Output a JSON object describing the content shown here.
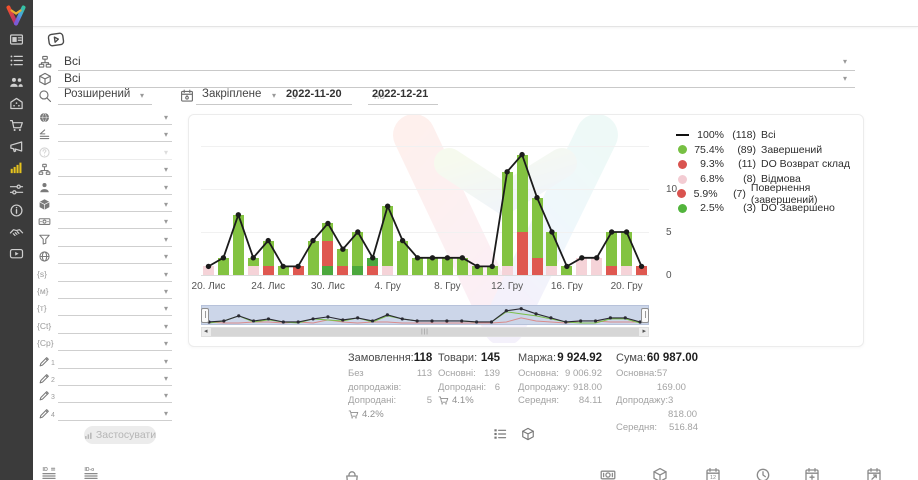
{
  "colors": {
    "bar_green": "#83c341",
    "bar_red": "#df5850",
    "bar_pink": "#f5d3d8",
    "bar_dgreen": "#4ca83d",
    "line_black": "#1b1b1b",
    "legend_green": "#77c043",
    "legend_red": "#d9534f",
    "legend_pink": "#f3ccd3",
    "legend_dgreen": "#52b43c",
    "sidebar_active": "#e6c31e",
    "nav_green": "#7cbf4a",
    "nav_red": "#d98b8b"
  },
  "sidebar": {
    "items": [
      {
        "icon": "dashboard-image"
      },
      {
        "icon": "order-list"
      },
      {
        "icon": "users"
      },
      {
        "icon": "warehouse"
      },
      {
        "icon": "cart"
      },
      {
        "icon": "megaphone"
      },
      {
        "icon": "analytics",
        "active": true
      },
      {
        "icon": "settings-sliders"
      },
      {
        "icon": "info"
      },
      {
        "icon": "partners"
      },
      {
        "icon": "video"
      }
    ]
  },
  "filters": {
    "top_rows": [
      {
        "icon": "hierarchy",
        "value": "Всі"
      },
      {
        "icon": "cube-outline",
        "value": "Всі"
      }
    ],
    "search_mode": "Розширений",
    "pinned_label": "Закріплене",
    "from_label": "з",
    "date_from": "2022-11-20",
    "to_label": "по",
    "date_to": "2022-12-21",
    "apply_label": "Застосувати",
    "rows": [
      {
        "icon": "globe-filled"
      },
      {
        "icon": "levels"
      },
      {
        "icon": "question-circle",
        "disabled": true
      },
      {
        "icon": "sitemap"
      },
      {
        "icon": "person"
      },
      {
        "icon": "cube-filled"
      },
      {
        "icon": "banknote"
      },
      {
        "icon": "funnel"
      },
      {
        "icon": "globe-wire"
      },
      {
        "icon": "token",
        "token": "{s}"
      },
      {
        "icon": "token",
        "token": "{м}"
      },
      {
        "icon": "token",
        "token": "{т}"
      },
      {
        "icon": "token",
        "token": "{Ct}"
      },
      {
        "icon": "token",
        "token": "{Cp}"
      },
      {
        "icon": "pencil",
        "num": "1"
      },
      {
        "icon": "pencil",
        "num": "2"
      },
      {
        "icon": "pencil",
        "num": "3"
      },
      {
        "icon": "pencil",
        "num": "4"
      }
    ]
  },
  "chart_data": {
    "type": "bar",
    "subtype": "stacked-bars-with-total-line",
    "ylim": [
      0,
      15
    ],
    "y_ticks": [
      0,
      5,
      10
    ],
    "grid": true,
    "legend_position": "right",
    "x_tick_labels": [
      {
        "i": 0,
        "label": "20. Лис"
      },
      {
        "i": 4,
        "label": "24. Лис"
      },
      {
        "i": 8,
        "label": "30. Лис"
      },
      {
        "i": 12,
        "label": "4. Гру"
      },
      {
        "i": 16,
        "label": "8. Гру"
      },
      {
        "i": 20,
        "label": "12. Гру"
      },
      {
        "i": 24,
        "label": "16. Гру"
      },
      {
        "i": 28,
        "label": "20. Гру"
      }
    ],
    "days": [
      {
        "d": "20.11",
        "t": 1,
        "seg": [
          [
            "pink",
            1
          ]
        ]
      },
      {
        "d": "21.11",
        "t": 2,
        "seg": [
          [
            "green",
            2
          ]
        ]
      },
      {
        "d": "22.11",
        "t": 7,
        "seg": [
          [
            "green",
            7
          ]
        ]
      },
      {
        "d": "23.11",
        "t": 2,
        "seg": [
          [
            "pink",
            1
          ],
          [
            "green",
            1
          ]
        ]
      },
      {
        "d": "24.11",
        "t": 4,
        "seg": [
          [
            "red",
            1
          ],
          [
            "green",
            3
          ]
        ]
      },
      {
        "d": "25.11",
        "t": 1,
        "seg": [
          [
            "green",
            1
          ]
        ]
      },
      {
        "d": "28.11",
        "t": 1,
        "seg": [
          [
            "red",
            1
          ]
        ]
      },
      {
        "d": "29.11",
        "t": 4,
        "seg": [
          [
            "green",
            4
          ]
        ]
      },
      {
        "d": "30.11",
        "t": 6,
        "seg": [
          [
            "dgreen",
            1
          ],
          [
            "red",
            3
          ],
          [
            "green",
            2
          ]
        ]
      },
      {
        "d": "01.12",
        "t": 3,
        "seg": [
          [
            "red",
            1
          ],
          [
            "green",
            2
          ]
        ]
      },
      {
        "d": "02.12",
        "t": 5,
        "seg": [
          [
            "dgreen",
            1
          ],
          [
            "green",
            4
          ]
        ]
      },
      {
        "d": "03.12",
        "t": 2,
        "seg": [
          [
            "red",
            1
          ],
          [
            "dgreen",
            1
          ]
        ]
      },
      {
        "d": "04.12",
        "t": 8,
        "seg": [
          [
            "pink",
            1
          ],
          [
            "green",
            7
          ]
        ]
      },
      {
        "d": "05.12",
        "t": 4,
        "seg": [
          [
            "green",
            4
          ]
        ]
      },
      {
        "d": "06.12",
        "t": 2,
        "seg": [
          [
            "green",
            2
          ]
        ]
      },
      {
        "d": "07.12",
        "t": 2,
        "seg": [
          [
            "green",
            2
          ]
        ]
      },
      {
        "d": "08.12",
        "t": 2,
        "seg": [
          [
            "green",
            2
          ]
        ]
      },
      {
        "d": "09.12",
        "t": 2,
        "seg": [
          [
            "green",
            2
          ]
        ]
      },
      {
        "d": "10.12",
        "t": 1,
        "seg": [
          [
            "green",
            1
          ]
        ]
      },
      {
        "d": "11.12",
        "t": 1,
        "seg": [
          [
            "green",
            1
          ]
        ]
      },
      {
        "d": "12.12",
        "t": 12,
        "seg": [
          [
            "pink",
            1
          ],
          [
            "green",
            11
          ]
        ]
      },
      {
        "d": "13.12",
        "t": 14,
        "seg": [
          [
            "red",
            5
          ],
          [
            "green",
            9
          ]
        ]
      },
      {
        "d": "14.12",
        "t": 9,
        "seg": [
          [
            "red",
            2
          ],
          [
            "green",
            7
          ]
        ]
      },
      {
        "d": "15.12",
        "t": 5,
        "seg": [
          [
            "pink",
            1
          ],
          [
            "green",
            4
          ]
        ]
      },
      {
        "d": "16.12",
        "t": 1,
        "seg": [
          [
            "green",
            1
          ]
        ]
      },
      {
        "d": "17.12",
        "t": 2,
        "seg": [
          [
            "pink",
            2
          ]
        ]
      },
      {
        "d": "18.12",
        "t": 2,
        "seg": [
          [
            "pink",
            2
          ]
        ]
      },
      {
        "d": "19.12",
        "t": 5,
        "seg": [
          [
            "red",
            1
          ],
          [
            "green",
            4
          ]
        ]
      },
      {
        "d": "20.12",
        "t": 5,
        "seg": [
          [
            "pink",
            1
          ],
          [
            "green",
            4
          ]
        ]
      },
      {
        "d": "21.12",
        "t": 1,
        "seg": [
          [
            "red",
            1
          ]
        ]
      }
    ]
  },
  "legend": {
    "entries": [
      {
        "swatch": "line",
        "color": "#111111",
        "pct": "100%",
        "count": "(118)",
        "label": "Всі"
      },
      {
        "swatch": "dot",
        "color": "#77c043",
        "pct": "75.4%",
        "count": "(89)",
        "label": "Завершений"
      },
      {
        "swatch": "dot",
        "color": "#d9534f",
        "pct": "9.3%",
        "count": "(11)",
        "label": "DO Возврат склад"
      },
      {
        "swatch": "dot",
        "color": "#f3ccd3",
        "pct": "6.8%",
        "count": "(8)",
        "label": "Відмова"
      },
      {
        "swatch": "dot",
        "color": "#d9534f",
        "pct": "5.9%",
        "count": "(7)",
        "label": "Повернення (завершений)"
      },
      {
        "swatch": "dot",
        "color": "#52b43c",
        "pct": "2.5%",
        "count": "(3)",
        "label": "DO Завершено"
      }
    ]
  },
  "stats": {
    "groups": [
      {
        "title": "Замовлення:",
        "value": "118",
        "rows": [
          [
            "Без допродажів:",
            "113"
          ],
          [
            "Допродані:",
            "5"
          ]
        ],
        "foot_pct": "4.2%",
        "cart": true
      },
      {
        "title": "Товари:",
        "value": "145",
        "rows": [
          [
            "Основні:",
            "139"
          ],
          [
            "Допродані:",
            "6"
          ]
        ],
        "foot_pct": "4.1%",
        "cart": true
      },
      {
        "title": "Маржа:",
        "value": "9 924.92",
        "rows": [
          [
            "Основна:",
            "9 006.92"
          ],
          [
            "Допродажу:",
            "918.00"
          ],
          [
            "Середня:",
            "84.11"
          ]
        ]
      },
      {
        "title": "Сума:",
        "value": "60 987.00",
        "rows": [
          [
            "Основна:",
            "57 169.00"
          ],
          [
            "Допродажу:",
            "3 818.00"
          ],
          [
            "Середня:",
            "516.84"
          ]
        ]
      }
    ]
  },
  "under_stats_icons": [
    {
      "icon": "list-legend"
    },
    {
      "icon": "cube-outline"
    }
  ],
  "footer": {
    "icons": [
      {
        "icon": "id-equal"
      },
      {
        "icon": "id-o"
      },
      {
        "icon": "bag"
      },
      {
        "icon": "money"
      },
      {
        "icon": "cube-outline"
      },
      {
        "icon": "calendar-dates"
      },
      {
        "icon": "clock"
      },
      {
        "icon": "calendar-add"
      },
      {
        "icon": "calendar-export"
      }
    ]
  }
}
